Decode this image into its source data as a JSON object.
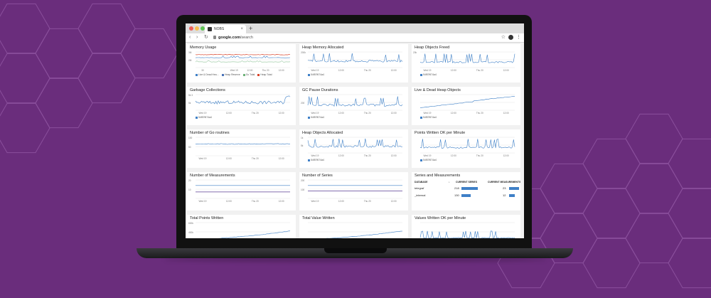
{
  "colors": {
    "background": "#6a2d7c",
    "hex_lines": "#8a4f9c",
    "line_blue": "#3f80c7",
    "line_red": "#d9452b",
    "line_green": "#6fb27a",
    "line_purple": "#5a3e94"
  },
  "browser": {
    "tab_title": "NOBS",
    "tab_close": "×",
    "new_tab": "+",
    "url_domain": "google.com",
    "url_path": "/search",
    "back_icon": "‹",
    "forward_icon": "›",
    "reload_icon": "↻",
    "star_icon": "☆",
    "menu_icon": "⋮"
  },
  "legend_id": "54f57f674a4",
  "panels": [
    {
      "title": "Memory Usage",
      "chart": "multi",
      "ticks": [
        "30",
        "",
        "Wed 19",
        "12:00",
        "Thu 20",
        "12:00"
      ],
      "y": [
        "3M",
        "2M"
      ],
      "legend": [
        "Live & Dead Hea…",
        "Heap Reserve",
        "Go Total",
        "Heap Total"
      ]
    },
    {
      "title": "Heap Memory Allocated",
      "chart": "spiky",
      "ticks": [
        "Wed 19",
        "12:00",
        "Thu 20",
        "12:00"
      ],
      "y": [
        "200k",
        ""
      ]
    },
    {
      "title": "Heap Objects Freed",
      "chart": "spiky2",
      "ticks": [
        "Wed 19",
        "12:00",
        "Thu 20",
        "12:00"
      ],
      "y": [
        "20k",
        ""
      ]
    },
    {
      "title": "Garbage Collections",
      "chart": "gc",
      "ticks": [
        "Wed 19",
        "12:00",
        "Thu 20",
        "12:00"
      ],
      "y": [
        "5k 3",
        "5k"
      ]
    },
    {
      "title": "GC Pause Durations",
      "chart": "pause",
      "ticks": [
        "Wed 19",
        "12:00",
        "Thu 20",
        "12:00"
      ],
      "y": [
        "",
        "200"
      ]
    },
    {
      "title": "Live & Dead Heap Objects",
      "chart": "steps",
      "ticks": [
        "Wed 19",
        "12:00",
        "Thu 20",
        "12:00"
      ],
      "y": [
        "",
        ""
      ]
    },
    {
      "title": "Number of Go routines",
      "chart": "flat",
      "ticks": [
        "Wed 19",
        "12:00",
        "Thu 20",
        "12:00"
      ],
      "y": [
        "100",
        "50"
      ]
    },
    {
      "title": "Heap Objects Allocated",
      "chart": "spiky",
      "ticks": [
        "Wed 19",
        "12:00",
        "Thu 20",
        "12:00"
      ],
      "y": [
        "1k",
        "5k"
      ]
    },
    {
      "title": "Points Written OK per Minute",
      "chart": "spiky2",
      "ticks": [
        "Wed 19",
        "12:00",
        "Thu 20",
        "12:00"
      ],
      "y": [
        "",
        ""
      ]
    },
    {
      "title": "Number of Measurements",
      "chart": "twoflat",
      "ticks": [
        "Wed 19",
        "12:00",
        "Thu 20",
        "12:00"
      ],
      "y": [
        "20",
        "10"
      ]
    },
    {
      "title": "Number of Series",
      "chart": "twoflat2",
      "ticks": [
        "Wed 19",
        "12:00",
        "Thu 20",
        "12:00"
      ],
      "y": [
        "200",
        "100"
      ]
    },
    {
      "title": "Series and Measurements",
      "chart": "table"
    },
    {
      "title": "Total Points Written",
      "chart": "rise",
      "ticks": [],
      "y": [
        "600k",
        "400k"
      ]
    },
    {
      "title": "Total Value Written",
      "chart": "rise",
      "ticks": [],
      "y": [
        "",
        ""
      ]
    },
    {
      "title": "Values Written OK per Minute",
      "chart": "rise2",
      "ticks": [],
      "y": [
        "",
        ""
      ]
    }
  ],
  "table": {
    "headers": [
      "DATABASE",
      "↓",
      "CURRENT SERIES",
      "CURRENT MEASUREMENTS"
    ],
    "rows": [
      {
        "database": "telegraf",
        "series": "218",
        "measurements": "23",
        "series_frac": 0.95,
        "meas_frac": 0.95
      },
      {
        "database": "_internal",
        "series": "130",
        "measurements": "12",
        "series_frac": 0.55,
        "meas_frac": 0.5
      }
    ]
  }
}
